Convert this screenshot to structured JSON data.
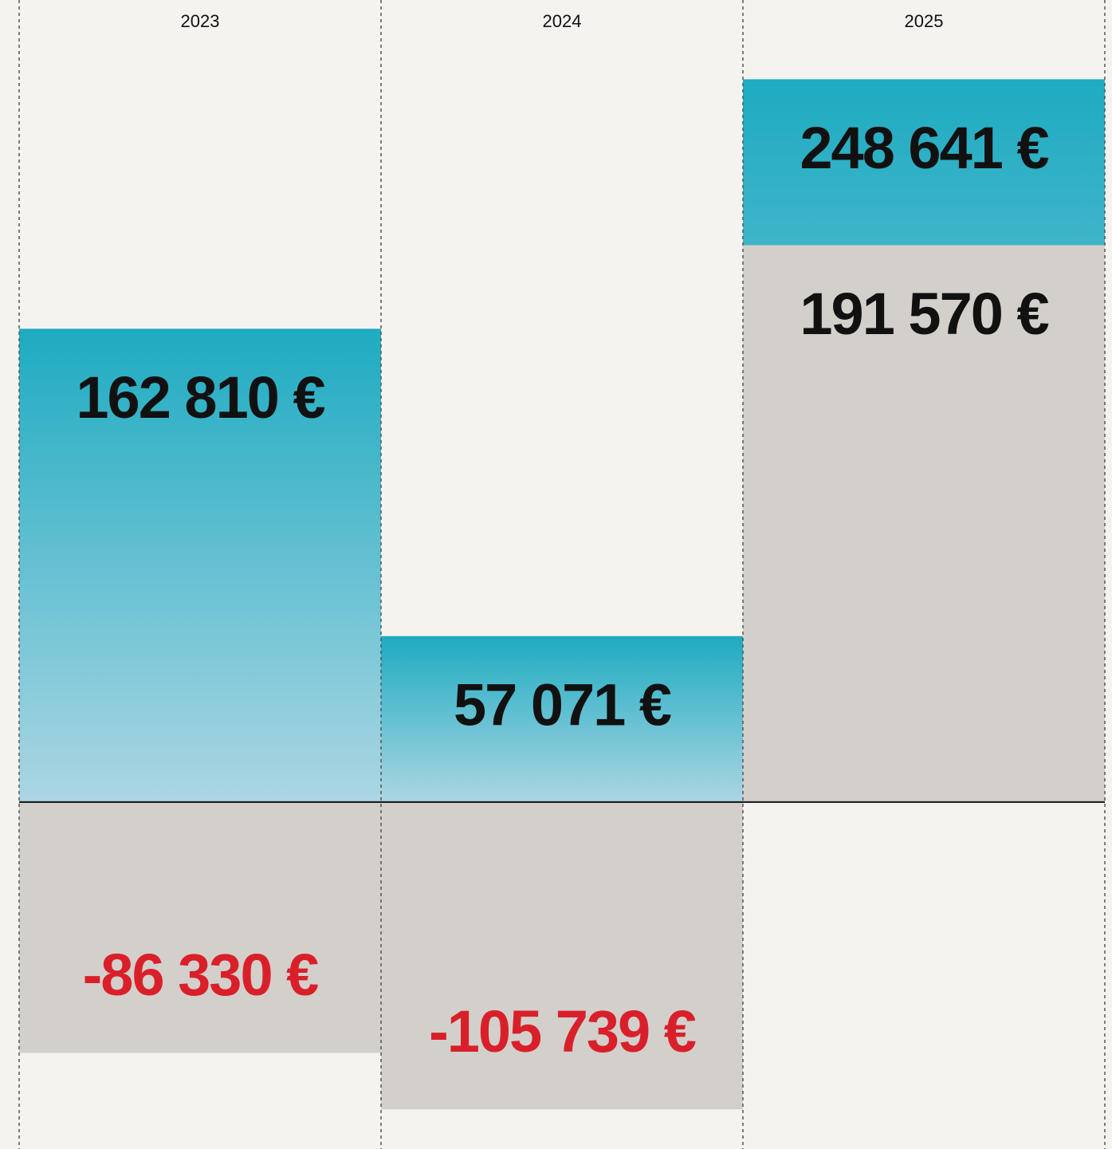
{
  "chart_data": {
    "type": "bar",
    "categories": [
      "2023",
      "2024",
      "2025"
    ],
    "series": [
      {
        "gradient": [
          "#1eabc1",
          "#acd6e3"
        ],
        "values": [
          162810,
          57071,
          248641
        ],
        "value_labels": [
          "162 810 €",
          "57 071 €",
          "248 641 €"
        ]
      },
      {
        "color": "#d3cfcb",
        "values": [
          -86330,
          -105739,
          191570
        ],
        "value_labels": [
          "-86 330 €",
          "-105 739 €",
          "191 570 €"
        ]
      }
    ],
    "ylim": [
      -118000,
      260000
    ],
    "label_color": "#111111",
    "negative_label_color": "#d9202a",
    "grid": "dashed"
  }
}
